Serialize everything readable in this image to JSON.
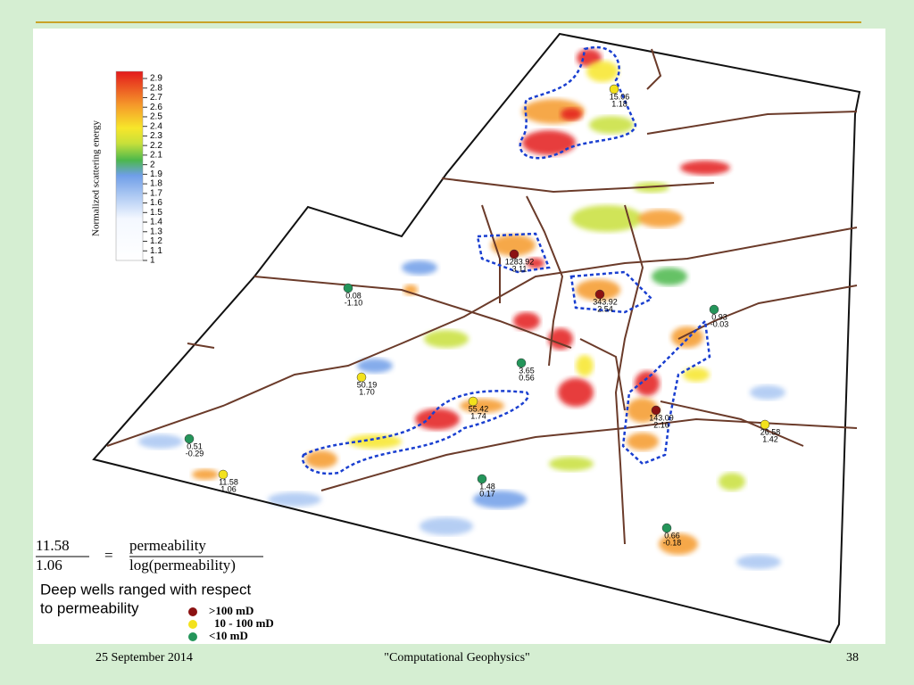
{
  "colorbar": {
    "label": "Normalized scattering energy",
    "range": [
      1,
      2.9
    ],
    "ticks": [
      1,
      1.1,
      1.2,
      1.3,
      1.4,
      1.5,
      1.6,
      1.7,
      1.8,
      1.9,
      2,
      2.1,
      2.2,
      2.3,
      2.4,
      2.5,
      2.6,
      2.7,
      2.8,
      2.9
    ]
  },
  "wells": [
    {
      "perm": "15.06",
      "log": "1.18",
      "color": "#f3e21c"
    },
    {
      "perm": "1283.92",
      "log": "3.11",
      "color": "#8b1212"
    },
    {
      "perm": "343.92",
      "log": "2.54",
      "color": "#8b1212"
    },
    {
      "perm": "0.08",
      "log": "-1.10",
      "color": "#24955a"
    },
    {
      "perm": "0.93",
      "log": "-0.03",
      "color": "#24955a"
    },
    {
      "perm": "3.65",
      "log": "0.56",
      "color": "#24955a"
    },
    {
      "perm": "50.19",
      "log": "1.70",
      "color": "#f3e21c"
    },
    {
      "perm": "55.42",
      "log": "1.74",
      "color": "#f3e21c"
    },
    {
      "perm": "143.09",
      "log": "2.16",
      "color": "#8b1212"
    },
    {
      "perm": "26.58",
      "log": "1.42",
      "color": "#f3e21c"
    },
    {
      "perm": "0.51",
      "log": "-0.29",
      "color": "#24955a"
    },
    {
      "perm": "11.58",
      "log": "1.06",
      "color": "#f3e21c"
    },
    {
      "perm": "1.48",
      "log": "0.17",
      "color": "#24955a"
    },
    {
      "perm": "0.66",
      "log": "-0.18",
      "color": "#24955a"
    }
  ],
  "key": {
    "numerator": "11.58",
    "denominator": "1.06",
    "equals": "=",
    "top": "permeability",
    "bottom": "log(permeability)",
    "caption": [
      "Deep wells ranged with respect",
      "to permeability"
    ],
    "classes": [
      {
        "label": ">100 mD",
        "color": "#8b1212"
      },
      {
        "label": "10 - 100 mD",
        "color": "#f3e21c"
      },
      {
        "label": "<10 mD",
        "color": "#24955a"
      }
    ]
  },
  "footer": {
    "date": "25 September 2014",
    "center": "\"Computational Geophysics\"",
    "page": "38"
  }
}
